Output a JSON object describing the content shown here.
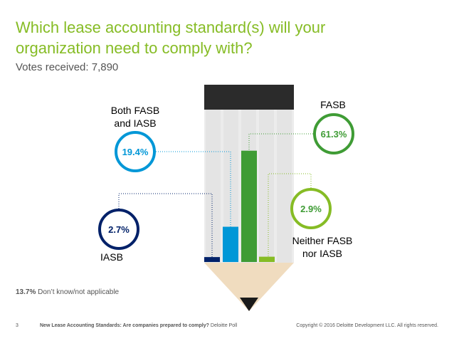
{
  "title": "Which lease accounting standard(s) will your organization need to comply with?",
  "subtitle": "Votes received: 7,890",
  "note": {
    "value": "13.7%",
    "text": " Don’t know/not applicable"
  },
  "footer": {
    "page_number": "3",
    "report_title": "New Lease Accounting Standards: Are companies prepared to comply?",
    "poll_name": " Deloitte Poll",
    "copyright": "Copyright © 2016 Deloitte Development LLC. All rights reserved."
  },
  "colors": {
    "title": "#86bc25",
    "iasb": "#012169",
    "both": "#0097d7",
    "fasb": "#3f9c35",
    "neither": "#86bc25"
  },
  "chart_data": {
    "type": "bar",
    "categories": [
      "IASB",
      "Both FASB and IASB",
      "FASB",
      "Neither FASB nor IASB"
    ],
    "values": [
      2.7,
      19.4,
      61.3,
      2.9
    ],
    "data_labels": [
      "2.7%",
      "19.4%",
      "61.3%",
      "2.9%"
    ],
    "category_labels": [
      {
        "line1": "IASB",
        "line2": ""
      },
      {
        "line1": "Both FASB",
        "line2": "and IASB"
      },
      {
        "line1": "FASB",
        "line2": ""
      },
      {
        "line1": "Neither FASB",
        "line2": "nor IASB"
      }
    ],
    "ylim": [
      0,
      100
    ]
  }
}
